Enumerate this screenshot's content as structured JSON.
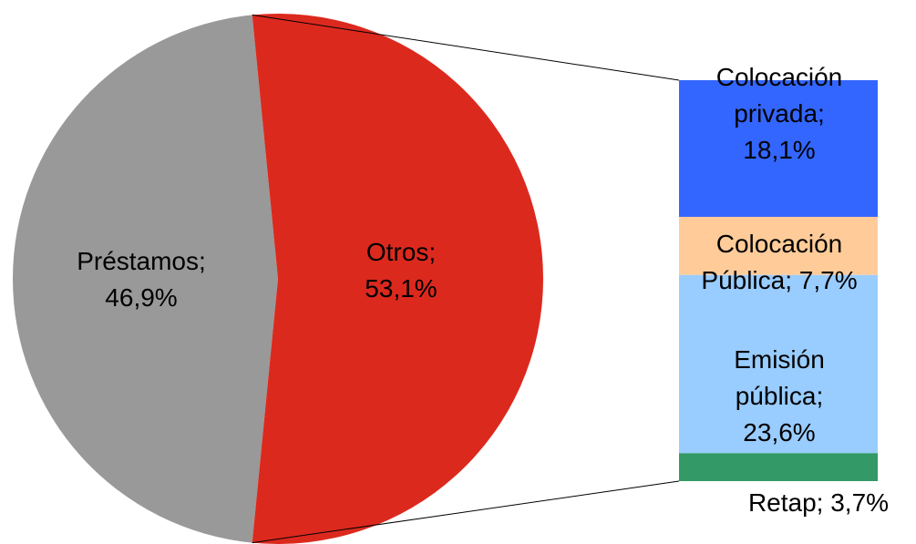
{
  "chart_data": {
    "type": "pie-of-bar",
    "values": [
      46.9,
      53.1
    ],
    "value_labels": [
      "Préstamos; 46,9%",
      "Otros; 53,1%"
    ],
    "colors": [
      "#999999",
      "#dc291e"
    ],
    "breakdown": {
      "values": [
        18.1,
        7.7,
        23.6,
        3.7
      ],
      "value_labels": [
        "Colocación privada; 18,1%",
        "Colocación Pública; 7,7%",
        "Emisión pública; 23,6%",
        "Retap; 3,7%"
      ],
      "colors": [
        "#3366ff",
        "#ffcc99",
        "#99ccff",
        "#339966"
      ]
    }
  }
}
